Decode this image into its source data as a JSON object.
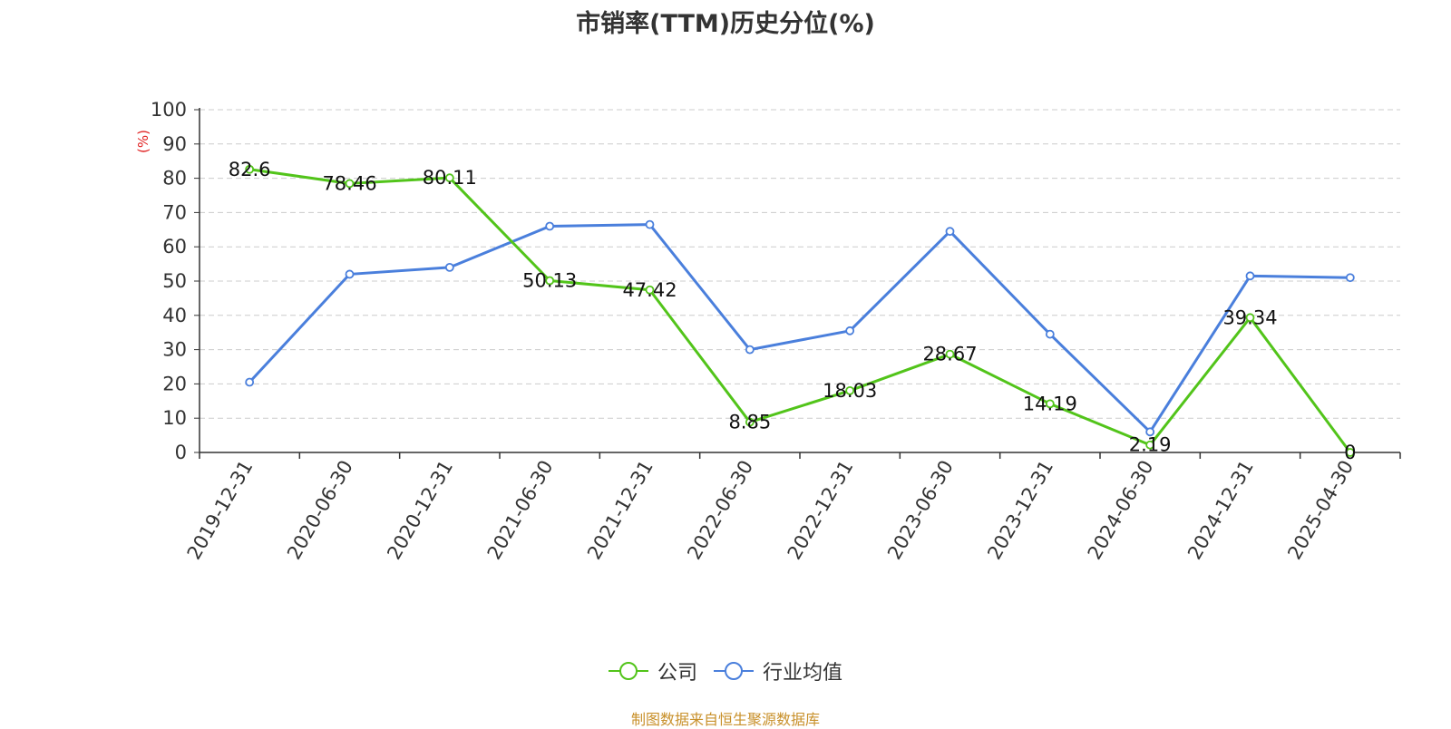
{
  "chart_data": {
    "type": "line",
    "title": "市销率(TTM)历史分位(%)",
    "ylabel": "(%)",
    "xlabel": "",
    "ylim": [
      0,
      100
    ],
    "yticks": [
      0,
      10,
      20,
      30,
      40,
      50,
      60,
      70,
      80,
      90,
      100
    ],
    "grid": true,
    "legend_position": "bottom",
    "categories": [
      "2019-12-31",
      "2020-06-30",
      "2020-12-31",
      "2021-06-30",
      "2021-12-31",
      "2022-06-30",
      "2022-12-31",
      "2023-06-30",
      "2023-12-31",
      "2024-06-30",
      "2024-12-31",
      "2025-04-30"
    ],
    "series": [
      {
        "name": "公司",
        "color": "#52c41a",
        "values": [
          82.6,
          78.46,
          80.11,
          50.13,
          47.42,
          8.85,
          18.03,
          28.67,
          14.19,
          2.19,
          39.34,
          0
        ],
        "labels": [
          "82.6",
          "78.46",
          "80.11",
          "50.13",
          "47.42",
          "8.85",
          "18.03",
          "28.67",
          "14.19",
          "2.19",
          "39.34",
          "0"
        ]
      },
      {
        "name": "行业均值",
        "color": "#4a7fdc",
        "values": [
          20.5,
          52.0,
          54.0,
          66.0,
          66.5,
          30.0,
          35.5,
          64.5,
          34.5,
          6.0,
          51.5,
          51.0
        ]
      }
    ]
  },
  "source_text": "制图数据来自恒生聚源数据库"
}
